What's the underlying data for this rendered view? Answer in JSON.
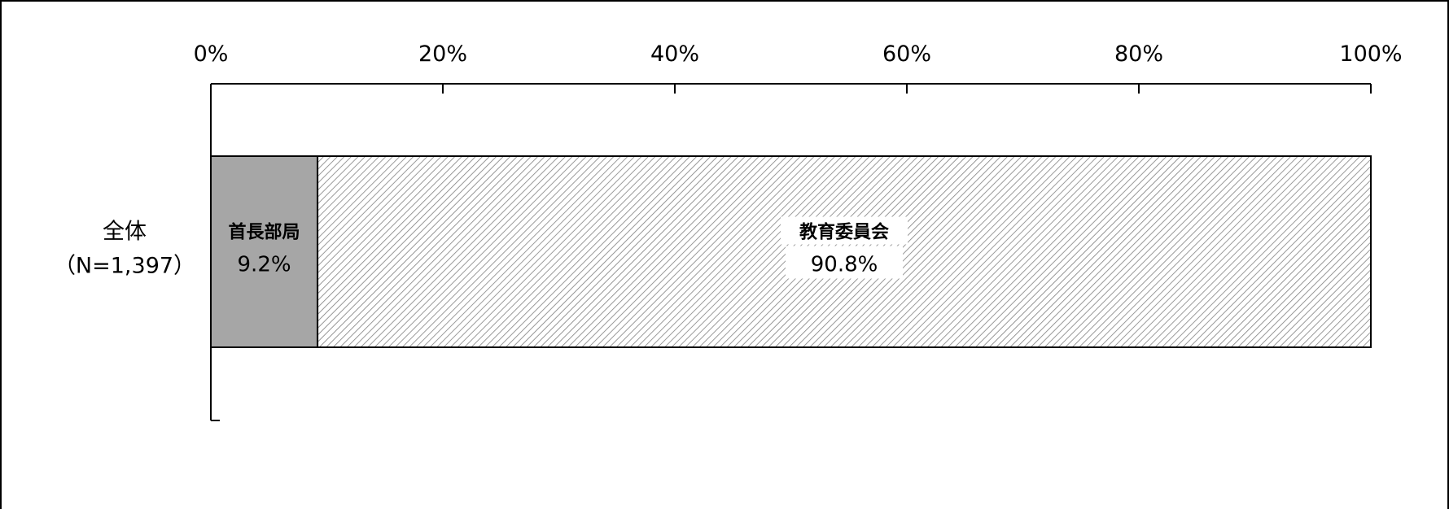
{
  "chart_data": {
    "type": "bar",
    "orientation": "horizontal",
    "stacked": true,
    "percent_stacked": true,
    "categories": [
      "全体"
    ],
    "category_labels": [
      {
        "line1": "全体",
        "line2": "（N=1,397）"
      }
    ],
    "series": [
      {
        "name": "首長部局",
        "values": [
          9.2
        ],
        "value_label": "9.2%",
        "fill": "gray",
        "color": "#a6a6a6"
      },
      {
        "name": "教育委員会",
        "values": [
          90.8
        ],
        "value_label": "90.8%",
        "fill": "hatched",
        "color": "#ffffff",
        "hatch_color": "#808080"
      }
    ],
    "xaxis": {
      "position": "top",
      "min": 0,
      "max": 100,
      "ticks": [
        0,
        20,
        40,
        60,
        80,
        100
      ],
      "tick_labels": [
        "0%",
        "20%",
        "40%",
        "60%",
        "80%",
        "100%"
      ]
    },
    "grid": false,
    "legend": "none",
    "title": "",
    "xlabel": "",
    "ylabel": ""
  }
}
